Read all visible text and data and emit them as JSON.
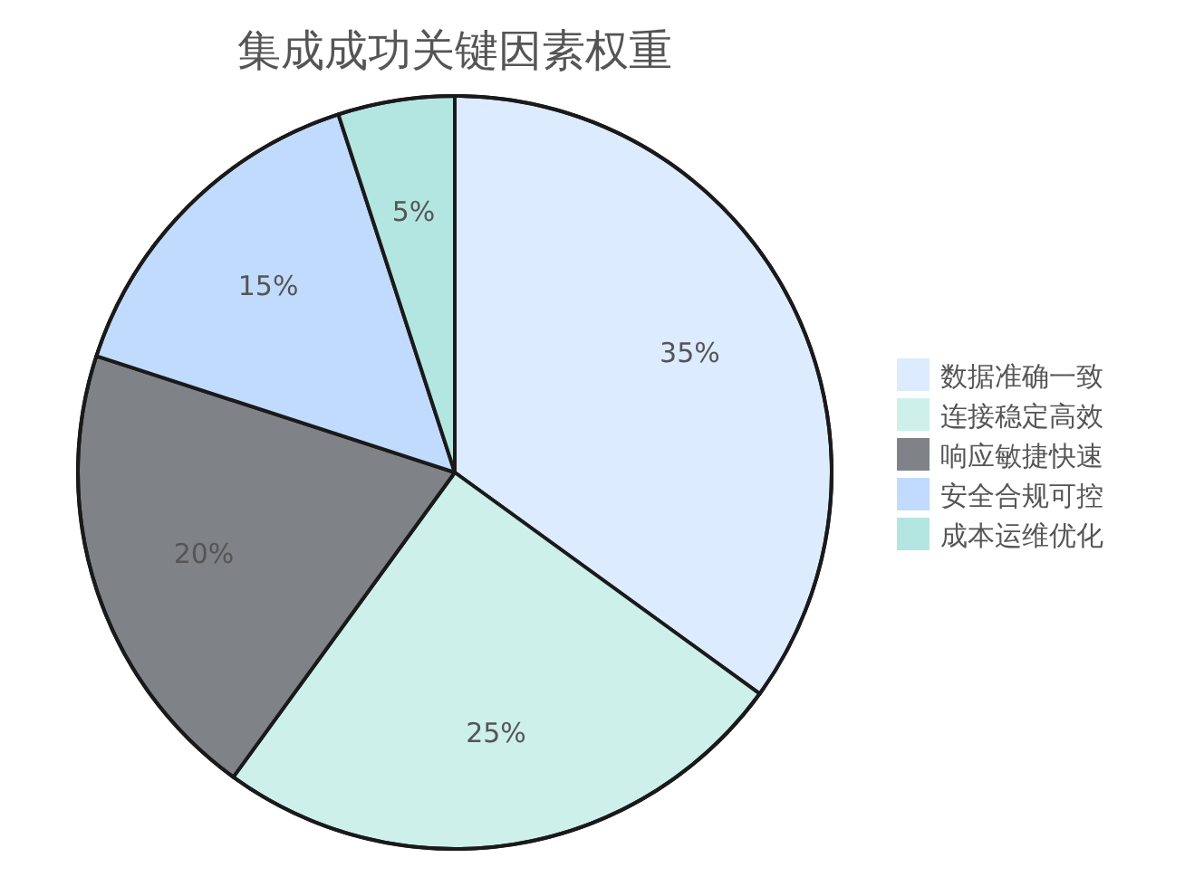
{
  "chart_data": {
    "type": "pie",
    "title": "集成成功关键因素权重",
    "categories": [
      "数据准确一致",
      "连接稳定高效",
      "响应敏捷快速",
      "安全合规可控",
      "成本运维优化"
    ],
    "values": [
      35,
      25,
      20,
      15,
      5
    ],
    "colors": [
      "#ddebff",
      "#cdf0eb",
      "#7f8388",
      "#c1dbff",
      "#b3e6e1"
    ],
    "value_labels": [
      "35%",
      "25%",
      "20%",
      "15%",
      "5%"
    ],
    "legend": "right"
  }
}
